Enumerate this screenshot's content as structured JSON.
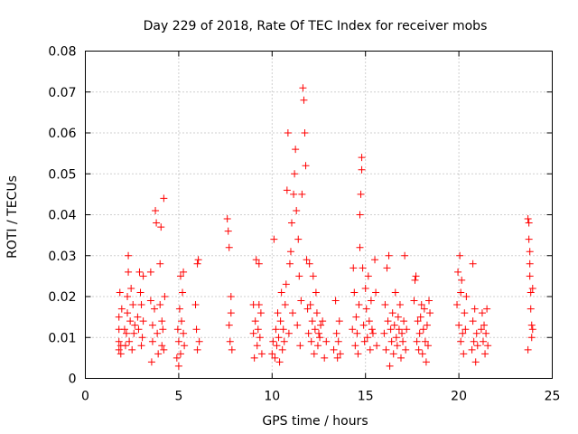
{
  "chart_data": {
    "type": "scatter",
    "title": "Day 229 of 2018, Rate Of TEC Index for receiver mobs",
    "xlabel": "GPS time / hours",
    "ylabel": "ROTI / TECUs",
    "xlim": [
      0,
      25
    ],
    "ylim": [
      0,
      0.08
    ],
    "x_ticks": [
      0,
      5,
      10,
      15,
      20,
      25
    ],
    "y_ticks": [
      0,
      0.01,
      0.02,
      0.03,
      0.04,
      0.05,
      0.06,
      0.07,
      0.08
    ],
    "x_tick_labels": [
      "0",
      "5",
      "10",
      "15",
      "20",
      "25"
    ],
    "y_tick_labels": [
      "0",
      "0.01",
      "0.02",
      "0.03",
      "0.04",
      "0.05",
      "0.06",
      "0.07",
      "0.08"
    ],
    "grid": true,
    "marker": "+",
    "color": "#ff0000",
    "series": [
      {
        "name": "ROTI",
        "points": [
          [
            1.8,
            0.007
          ],
          [
            1.8,
            0.009
          ],
          [
            1.8,
            0.012
          ],
          [
            1.8,
            0.015
          ],
          [
            1.85,
            0.021
          ],
          [
            1.9,
            0.006
          ],
          [
            1.9,
            0.008
          ],
          [
            1.95,
            0.017
          ],
          [
            2.1,
            0.012
          ],
          [
            2.15,
            0.008
          ],
          [
            2.2,
            0.011
          ],
          [
            2.25,
            0.016
          ],
          [
            2.25,
            0.02
          ],
          [
            2.3,
            0.026
          ],
          [
            2.3,
            0.03
          ],
          [
            2.35,
            0.009
          ],
          [
            2.4,
            0.014
          ],
          [
            2.45,
            0.022
          ],
          [
            2.5,
            0.007
          ],
          [
            2.55,
            0.018
          ],
          [
            2.6,
            0.011
          ],
          [
            2.65,
            0.013
          ],
          [
            2.8,
            0.015
          ],
          [
            2.85,
            0.012
          ],
          [
            2.9,
            0.026
          ],
          [
            2.95,
            0.021
          ],
          [
            3.0,
            0.018
          ],
          [
            3.0,
            0.008
          ],
          [
            3.05,
            0.01
          ],
          [
            3.1,
            0.014
          ],
          [
            3.1,
            0.025
          ],
          [
            3.5,
            0.026
          ],
          [
            3.5,
            0.019
          ],
          [
            3.55,
            0.004
          ],
          [
            3.6,
            0.009
          ],
          [
            3.6,
            0.013
          ],
          [
            3.7,
            0.017
          ],
          [
            3.75,
            0.041
          ],
          [
            3.8,
            0.038
          ],
          [
            3.85,
            0.011
          ],
          [
            3.9,
            0.006
          ],
          [
            4.0,
            0.028
          ],
          [
            4.0,
            0.018
          ],
          [
            4.05,
            0.037
          ],
          [
            4.1,
            0.008
          ],
          [
            4.1,
            0.014
          ],
          [
            4.15,
            0.012
          ],
          [
            4.2,
            0.044
          ],
          [
            4.2,
            0.007
          ],
          [
            4.25,
            0.02
          ],
          [
            4.9,
            0.005
          ],
          [
            4.95,
            0.012
          ],
          [
            5.0,
            0.003
          ],
          [
            5.0,
            0.009
          ],
          [
            5.05,
            0.017
          ],
          [
            5.1,
            0.025
          ],
          [
            5.1,
            0.006
          ],
          [
            5.15,
            0.014
          ],
          [
            5.2,
            0.021
          ],
          [
            5.25,
            0.026
          ],
          [
            5.25,
            0.011
          ],
          [
            5.3,
            0.008
          ],
          [
            5.9,
            0.018
          ],
          [
            5.95,
            0.012
          ],
          [
            6.0,
            0.007
          ],
          [
            6.0,
            0.028
          ],
          [
            6.05,
            0.029
          ],
          [
            6.1,
            0.009
          ],
          [
            7.6,
            0.039
          ],
          [
            7.65,
            0.036
          ],
          [
            7.7,
            0.032
          ],
          [
            7.7,
            0.013
          ],
          [
            7.75,
            0.009
          ],
          [
            7.8,
            0.016
          ],
          [
            7.8,
            0.02
          ],
          [
            7.85,
            0.007
          ],
          [
            9.0,
            0.018
          ],
          [
            9.0,
            0.011
          ],
          [
            9.05,
            0.005
          ],
          [
            9.1,
            0.014
          ],
          [
            9.15,
            0.029
          ],
          [
            9.2,
            0.008
          ],
          [
            9.25,
            0.012
          ],
          [
            9.3,
            0.018
          ],
          [
            9.3,
            0.028
          ],
          [
            9.35,
            0.01
          ],
          [
            9.4,
            0.016
          ],
          [
            9.45,
            0.006
          ],
          [
            10.0,
            0.006
          ],
          [
            10.05,
            0.009
          ],
          [
            10.1,
            0.034
          ],
          [
            10.15,
            0.005
          ],
          [
            10.2,
            0.012
          ],
          [
            10.25,
            0.008
          ],
          [
            10.3,
            0.016
          ],
          [
            10.35,
            0.01
          ],
          [
            10.4,
            0.004
          ],
          [
            10.45,
            0.014
          ],
          [
            10.5,
            0.021
          ],
          [
            10.55,
            0.007
          ],
          [
            10.6,
            0.012
          ],
          [
            10.65,
            0.009
          ],
          [
            10.7,
            0.018
          ],
          [
            10.75,
            0.023
          ],
          [
            10.8,
            0.046
          ],
          [
            10.85,
            0.06
          ],
          [
            10.9,
            0.011
          ],
          [
            10.95,
            0.028
          ],
          [
            11.0,
            0.031
          ],
          [
            11.05,
            0.038
          ],
          [
            11.1,
            0.016
          ],
          [
            11.15,
            0.045
          ],
          [
            11.2,
            0.05
          ],
          [
            11.25,
            0.056
          ],
          [
            11.3,
            0.041
          ],
          [
            11.35,
            0.013
          ],
          [
            11.4,
            0.034
          ],
          [
            11.45,
            0.025
          ],
          [
            11.5,
            0.008
          ],
          [
            11.55,
            0.019
          ],
          [
            11.6,
            0.045
          ],
          [
            11.65,
            0.071
          ],
          [
            11.7,
            0.068
          ],
          [
            11.75,
            0.06
          ],
          [
            11.8,
            0.052
          ],
          [
            11.85,
            0.029
          ],
          [
            11.9,
            0.017
          ],
          [
            11.95,
            0.011
          ],
          [
            12.0,
            0.028
          ],
          [
            12.05,
            0.018
          ],
          [
            12.1,
            0.009
          ],
          [
            12.15,
            0.014
          ],
          [
            12.2,
            0.025
          ],
          [
            12.25,
            0.006
          ],
          [
            12.3,
            0.012
          ],
          [
            12.35,
            0.021
          ],
          [
            12.4,
            0.016
          ],
          [
            12.45,
            0.008
          ],
          [
            12.5,
            0.011
          ],
          [
            12.55,
            0.01
          ],
          [
            12.6,
            0.013
          ],
          [
            12.7,
            0.014
          ],
          [
            12.8,
            0.005
          ],
          [
            12.9,
            0.009
          ],
          [
            13.3,
            0.007
          ],
          [
            13.4,
            0.019
          ],
          [
            13.45,
            0.011
          ],
          [
            13.5,
            0.005
          ],
          [
            13.55,
            0.009
          ],
          [
            13.6,
            0.014
          ],
          [
            13.65,
            0.006
          ],
          [
            14.3,
            0.012
          ],
          [
            14.35,
            0.027
          ],
          [
            14.4,
            0.021
          ],
          [
            14.45,
            0.008
          ],
          [
            14.5,
            0.015
          ],
          [
            14.55,
            0.011
          ],
          [
            14.6,
            0.006
          ],
          [
            14.65,
            0.018
          ],
          [
            14.7,
            0.032
          ],
          [
            14.7,
            0.04
          ],
          [
            14.75,
            0.045
          ],
          [
            14.8,
            0.051
          ],
          [
            14.8,
            0.054
          ],
          [
            14.85,
            0.027
          ],
          [
            14.9,
            0.013
          ],
          [
            14.95,
            0.009
          ],
          [
            15.0,
            0.022
          ],
          [
            15.05,
            0.017
          ],
          [
            15.1,
            0.01
          ],
          [
            15.15,
            0.025
          ],
          [
            15.2,
            0.014
          ],
          [
            15.25,
            0.007
          ],
          [
            15.3,
            0.019
          ],
          [
            15.35,
            0.012
          ],
          [
            15.4,
            0.011
          ],
          [
            15.5,
            0.029
          ],
          [
            15.55,
            0.021
          ],
          [
            15.6,
            0.008
          ],
          [
            16.0,
            0.011
          ],
          [
            16.05,
            0.018
          ],
          [
            16.1,
            0.007
          ],
          [
            16.15,
            0.027
          ],
          [
            16.2,
            0.014
          ],
          [
            16.25,
            0.03
          ],
          [
            16.3,
            0.003
          ],
          [
            16.35,
            0.012
          ],
          [
            16.4,
            0.009
          ],
          [
            16.45,
            0.016
          ],
          [
            16.5,
            0.006
          ],
          [
            16.55,
            0.013
          ],
          [
            16.6,
            0.021
          ],
          [
            16.65,
            0.01
          ],
          [
            16.7,
            0.008
          ],
          [
            16.75,
            0.015
          ],
          [
            16.8,
            0.012
          ],
          [
            16.85,
            0.018
          ],
          [
            16.9,
            0.005
          ],
          [
            16.95,
            0.011
          ],
          [
            17.0,
            0.009
          ],
          [
            17.05,
            0.014
          ],
          [
            17.1,
            0.03
          ],
          [
            17.15,
            0.007
          ],
          [
            17.2,
            0.012
          ],
          [
            17.6,
            0.019
          ],
          [
            17.65,
            0.024
          ],
          [
            17.7,
            0.025
          ],
          [
            17.75,
            0.009
          ],
          [
            17.8,
            0.014
          ],
          [
            17.85,
            0.007
          ],
          [
            17.9,
            0.011
          ],
          [
            17.95,
            0.015
          ],
          [
            18.0,
            0.018
          ],
          [
            18.05,
            0.006
          ],
          [
            18.1,
            0.012
          ],
          [
            18.15,
            0.017
          ],
          [
            18.2,
            0.009
          ],
          [
            18.25,
            0.004
          ],
          [
            18.3,
            0.013
          ],
          [
            18.35,
            0.008
          ],
          [
            18.4,
            0.019
          ],
          [
            18.45,
            0.016
          ],
          [
            19.9,
            0.018
          ],
          [
            19.95,
            0.026
          ],
          [
            20.0,
            0.013
          ],
          [
            20.05,
            0.03
          ],
          [
            20.1,
            0.021
          ],
          [
            20.1,
            0.009
          ],
          [
            20.15,
            0.024
          ],
          [
            20.2,
            0.011
          ],
          [
            20.25,
            0.006
          ],
          [
            20.3,
            0.016
          ],
          [
            20.35,
            0.012
          ],
          [
            20.4,
            0.02
          ],
          [
            20.7,
            0.007
          ],
          [
            20.75,
            0.028
          ],
          [
            20.75,
            0.014
          ],
          [
            20.8,
            0.009
          ],
          [
            20.85,
            0.017
          ],
          [
            20.9,
            0.004
          ],
          [
            20.95,
            0.011
          ],
          [
            21.0,
            0.008
          ],
          [
            21.2,
            0.012
          ],
          [
            21.25,
            0.016
          ],
          [
            21.3,
            0.009
          ],
          [
            21.35,
            0.013
          ],
          [
            21.4,
            0.006
          ],
          [
            21.45,
            0.011
          ],
          [
            21.5,
            0.017
          ],
          [
            21.55,
            0.008
          ],
          [
            23.7,
            0.007
          ],
          [
            23.7,
            0.039
          ],
          [
            23.75,
            0.038
          ],
          [
            23.75,
            0.034
          ],
          [
            23.8,
            0.031
          ],
          [
            23.8,
            0.028
          ],
          [
            23.8,
            0.025
          ],
          [
            23.85,
            0.021
          ],
          [
            23.85,
            0.017
          ],
          [
            23.9,
            0.013
          ],
          [
            23.9,
            0.01
          ],
          [
            23.95,
            0.022
          ],
          [
            23.95,
            0.012
          ]
        ]
      }
    ]
  }
}
